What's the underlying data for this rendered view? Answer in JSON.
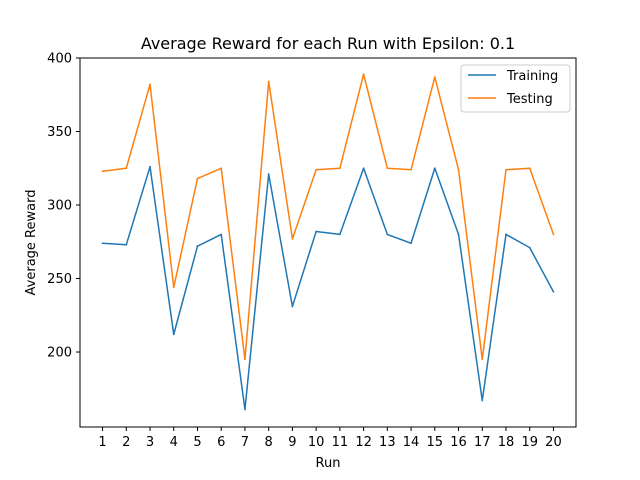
{
  "chart_data": {
    "type": "line",
    "title": "Average Reward for each Run with Epsilon: 0.1",
    "xlabel": "Run",
    "ylabel": "Average Reward",
    "x": [
      1,
      2,
      3,
      4,
      5,
      6,
      7,
      8,
      9,
      10,
      11,
      12,
      13,
      14,
      15,
      16,
      17,
      18,
      19,
      20
    ],
    "x_ticks": [
      "1",
      "2",
      "3",
      "4",
      "5",
      "6",
      "7",
      "8",
      "9",
      "10",
      "11",
      "12",
      "13",
      "14",
      "15",
      "16",
      "17",
      "18",
      "19",
      "20"
    ],
    "xlim": [
      0.05,
      20.95
    ],
    "ylim": [
      149,
      400
    ],
    "y_ticks": [
      200,
      250,
      300,
      350,
      400
    ],
    "grid": false,
    "legend_position": "top-right",
    "series": [
      {
        "name": "Training",
        "color": "#1f77b4",
        "values": [
          274,
          273,
          326,
          212,
          272,
          280,
          161,
          321,
          231,
          282,
          280,
          325,
          280,
          274,
          325,
          280,
          167,
          280,
          271,
          241
        ]
      },
      {
        "name": "Testing",
        "color": "#ff7f0e",
        "values": [
          323,
          325,
          382,
          244,
          318,
          325,
          195,
          384,
          277,
          324,
          325,
          389,
          325,
          324,
          387,
          324,
          195,
          324,
          325,
          280
        ]
      }
    ]
  }
}
